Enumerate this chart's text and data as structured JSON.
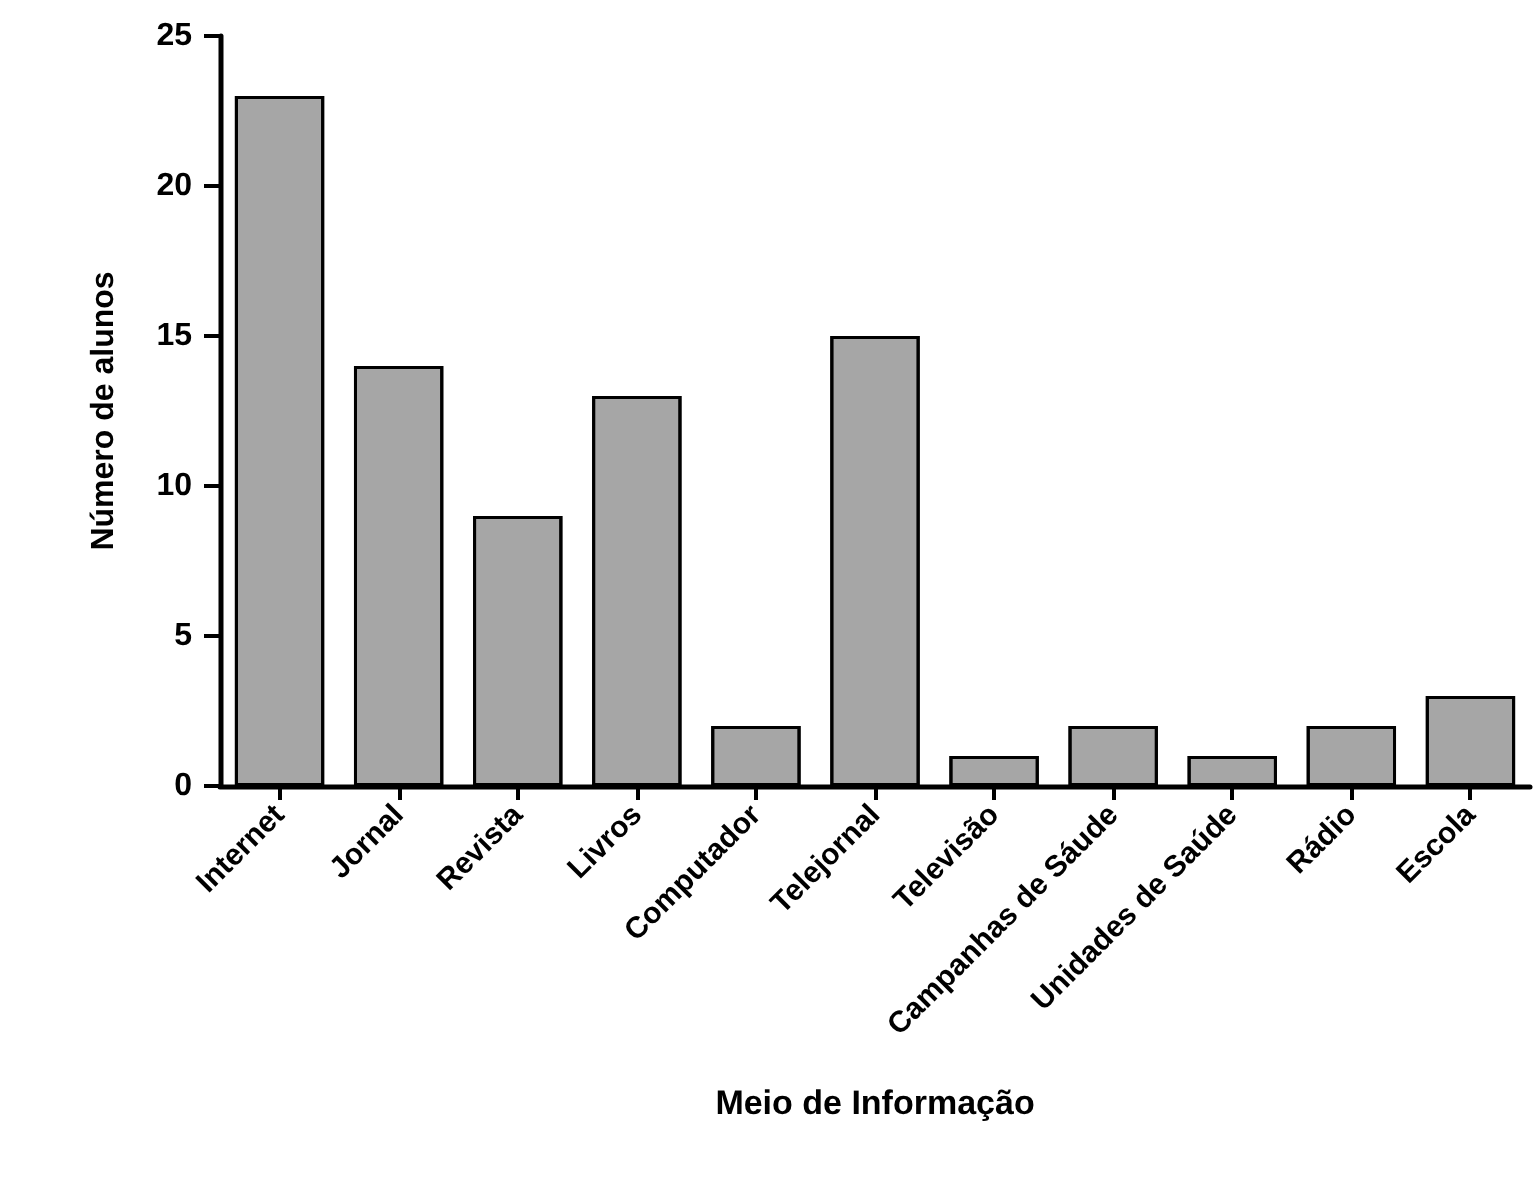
{
  "chart_data": {
    "type": "bar",
    "xlabel": "Meio de Informação",
    "ylabel": "Número de alunos",
    "categories": [
      "Internet",
      "Jornal",
      "Revista",
      "Livros",
      "Computador",
      "Telejornal",
      "Televisão",
      "Campanhas de Sáude",
      "Unidades de Saúde",
      "Rádio",
      "Escola"
    ],
    "values": [
      23,
      14,
      9,
      13,
      2,
      15,
      1,
      2,
      1,
      2,
      3
    ],
    "color": "#a6a6a6",
    "ylim": [
      0,
      25
    ],
    "yticks": [
      0,
      5,
      10,
      15,
      20,
      25
    ],
    "grid": false
  }
}
